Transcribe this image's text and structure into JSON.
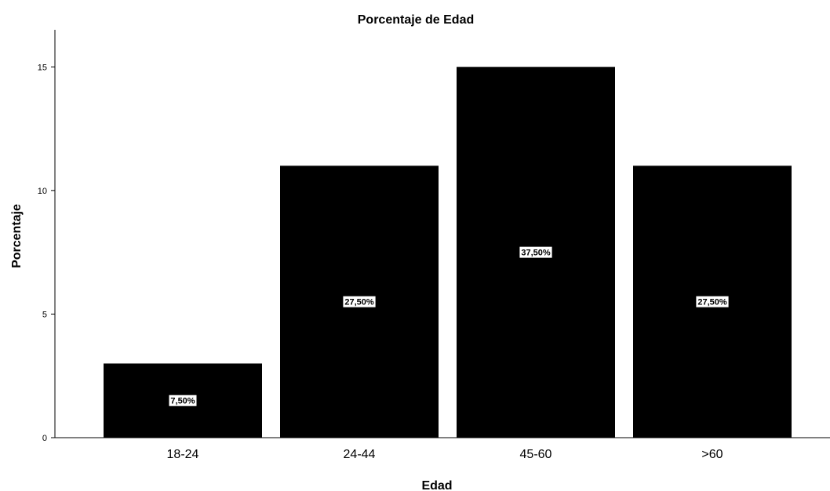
{
  "chart_data": {
    "type": "bar",
    "title": "Porcentaje de Edad",
    "xlabel": "Edad",
    "ylabel": "Porcentaje",
    "categories": [
      "18-24",
      "24-44",
      "45-60",
      ">60"
    ],
    "values": [
      3,
      11,
      15,
      11
    ],
    "data_labels": [
      "7,50%",
      "27,50%",
      "37,50%",
      "27,50%"
    ],
    "ylim": [
      0,
      16.5
    ],
    "yticks": [
      0,
      5,
      10,
      15
    ],
    "ytick_labels": [
      "0",
      "5",
      "10",
      "15"
    ],
    "grid": false,
    "legend": "none",
    "bar_color": "#000000",
    "label_box_color": "#ffffff"
  }
}
